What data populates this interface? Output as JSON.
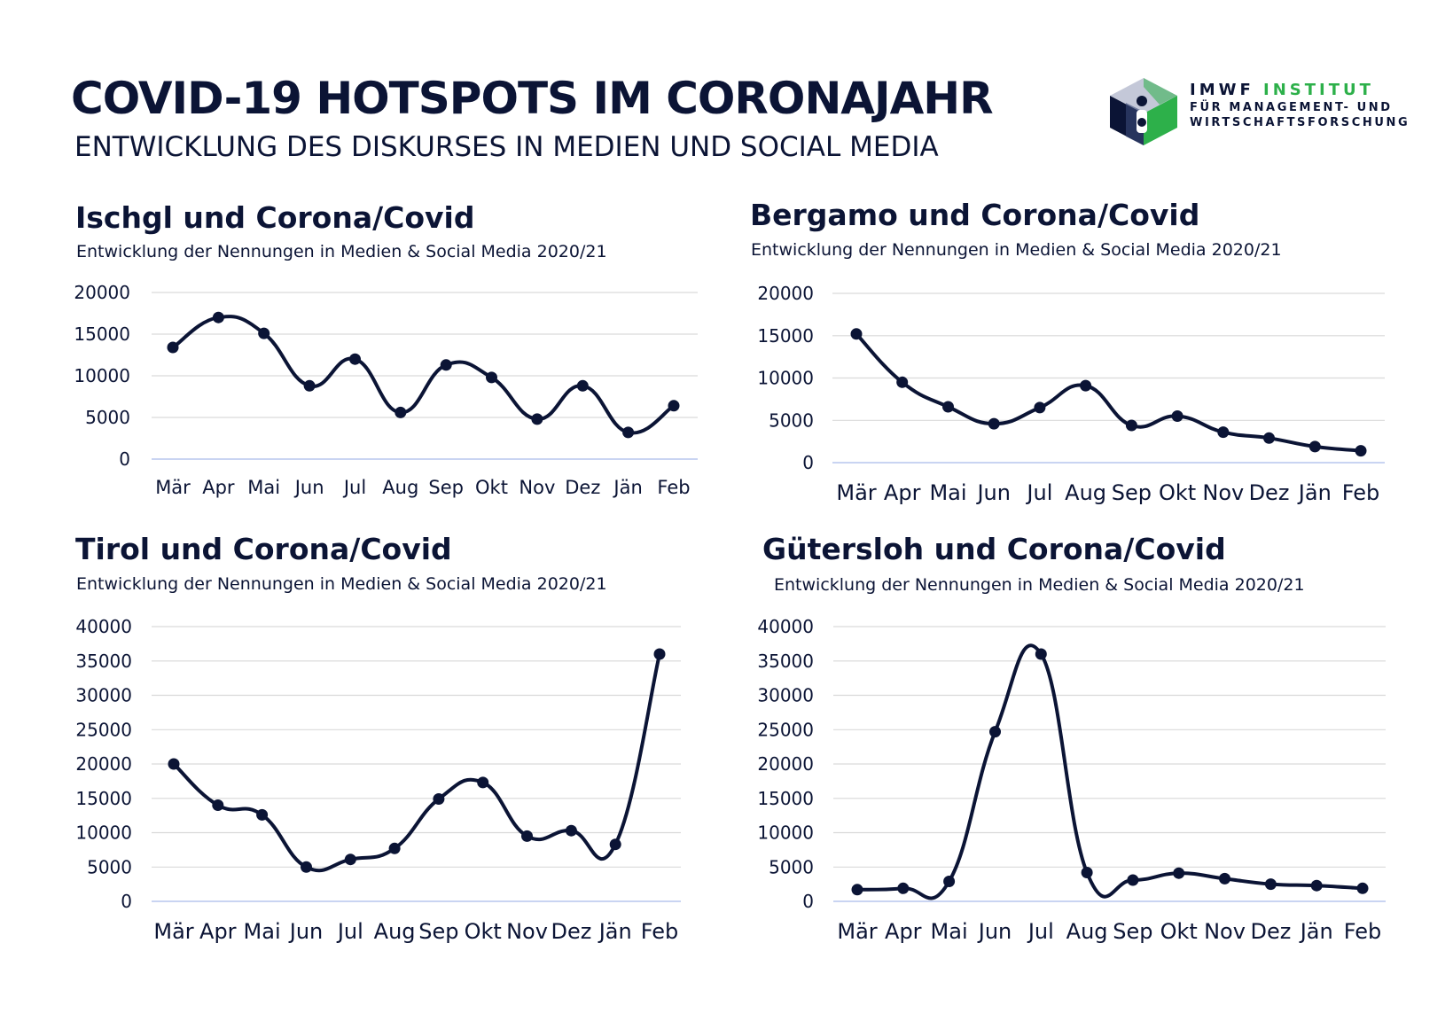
{
  "header": {
    "title": "COVID-19 HOTSPOTS IM CORONAJAHR",
    "subtitle": "ENTWICKLUNG DES DISKURSES IN MEDIEN UND SOCIAL MEDIA"
  },
  "logo": {
    "word1": "IMWF",
    "word2": "INSTITUT",
    "line2": "FÜR MANAGEMENT- UND",
    "line3": "WIRTSCHAFTSFORSCHUNG",
    "icon": "imwf-cube-logo-icon",
    "colors": {
      "navy": "#0b1435",
      "green": "#2db04a",
      "grey": "#9aa0b8"
    }
  },
  "colors": {
    "line": "#0b1435",
    "grid": "#d9d9d9",
    "baseline": "#c9d4f2"
  },
  "chart_data": [
    {
      "type": "line",
      "title": "Ischgl und Corona/Covid",
      "subtitle": "Entwicklung der Nennungen in Medien & Social Media 2020/21",
      "categories": [
        "Mär",
        "Apr",
        "Mai",
        "Jun",
        "Jul",
        "Aug",
        "Sep",
        "Okt",
        "Nov",
        "Dez",
        "Jän",
        "Feb"
      ],
      "values": [
        13400,
        17000,
        15100,
        8800,
        12000,
        5600,
        11300,
        9800,
        4800,
        8800,
        3200,
        6400
      ],
      "yticks": [
        "0",
        "5000",
        "10000",
        "15000",
        "20000"
      ],
      "ylim": [
        0,
        20000
      ],
      "grid": true
    },
    {
      "type": "line",
      "title": "Bergamo und Corona/Covid",
      "subtitle": "Entwicklung der Nennungen in Medien & Social Media 2020/21",
      "categories": [
        "Mär",
        "Apr",
        "Mai",
        "Jun",
        "Jul",
        "Aug",
        "Sep",
        "Okt",
        "Nov",
        "Dez",
        "Jän",
        "Feb"
      ],
      "values": [
        15200,
        9500,
        6600,
        4600,
        6500,
        9100,
        4400,
        5500,
        3600,
        2900,
        1900,
        1400
      ],
      "yticks": [
        "0",
        "5000",
        "10000",
        "15000",
        "20000"
      ],
      "ylim": [
        0,
        20000
      ],
      "grid": true
    },
    {
      "type": "line",
      "title": "Tirol und Corona/Covid",
      "subtitle": "Entwicklung der Nennungen in Medien & Social Media 2020/21",
      "categories": [
        "Mär",
        "Apr",
        "Mai",
        "Jun",
        "Jul",
        "Aug",
        "Sep",
        "Okt",
        "Nov",
        "Dez",
        "Jän",
        "Feb"
      ],
      "values": [
        20000,
        14000,
        12600,
        5000,
        6100,
        7700,
        14900,
        17300,
        9500,
        10300,
        8300,
        36000
      ],
      "yticks": [
        "0",
        "5000",
        "10000",
        "15000",
        "20000",
        "25000",
        "30000",
        "35000",
        "40000"
      ],
      "ylim": [
        0,
        40000
      ],
      "grid": true
    },
    {
      "type": "line",
      "title": "Gütersloh und Corona/Covid",
      "subtitle": "Entwicklung der Nennungen in Medien & Social Media 2020/21",
      "categories": [
        "Mär",
        "Apr",
        "Mai",
        "Jun",
        "Jul",
        "Aug",
        "Sep",
        "Okt",
        "Nov",
        "Dez",
        "Jän",
        "Feb"
      ],
      "values": [
        1700,
        1900,
        2900,
        24700,
        36000,
        4200,
        3100,
        4100,
        3300,
        2500,
        2300,
        1900
      ],
      "yticks": [
        "0",
        "5000",
        "10000",
        "15000",
        "20000",
        "25000",
        "30000",
        "35000",
        "40000"
      ],
      "ylim": [
        0,
        40000
      ],
      "grid": true
    }
  ]
}
